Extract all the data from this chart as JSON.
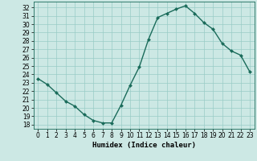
{
  "x": [
    0,
    1,
    2,
    3,
    4,
    5,
    6,
    7,
    8,
    9,
    10,
    11,
    12,
    13,
    14,
    15,
    16,
    17,
    18,
    19,
    20,
    21,
    22,
    23
  ],
  "y": [
    23.5,
    22.8,
    21.8,
    20.8,
    20.2,
    19.2,
    18.5,
    18.2,
    18.2,
    20.3,
    22.7,
    24.9,
    28.2,
    30.8,
    31.3,
    31.8,
    32.2,
    31.3,
    30.2,
    29.4,
    27.7,
    26.8,
    26.3,
    24.3
  ],
  "xlabel": "Humidex (Indice chaleur)",
  "ylim": [
    17.5,
    32.7
  ],
  "xlim": [
    -0.5,
    23.5
  ],
  "yticks": [
    18,
    19,
    20,
    21,
    22,
    23,
    24,
    25,
    26,
    27,
    28,
    29,
    30,
    31,
    32
  ],
  "xticks": [
    0,
    1,
    2,
    3,
    4,
    5,
    6,
    7,
    8,
    9,
    10,
    11,
    12,
    13,
    14,
    15,
    16,
    17,
    18,
    19,
    20,
    21,
    22,
    23
  ],
  "bg_color": "#cce8e4",
  "grid_color": "#99ccc6",
  "line_color": "#1a6b5a",
  "marker": "D",
  "marker_size": 2.0,
  "line_width": 1.0,
  "label_fontsize": 6.5,
  "tick_fontsize": 5.5
}
